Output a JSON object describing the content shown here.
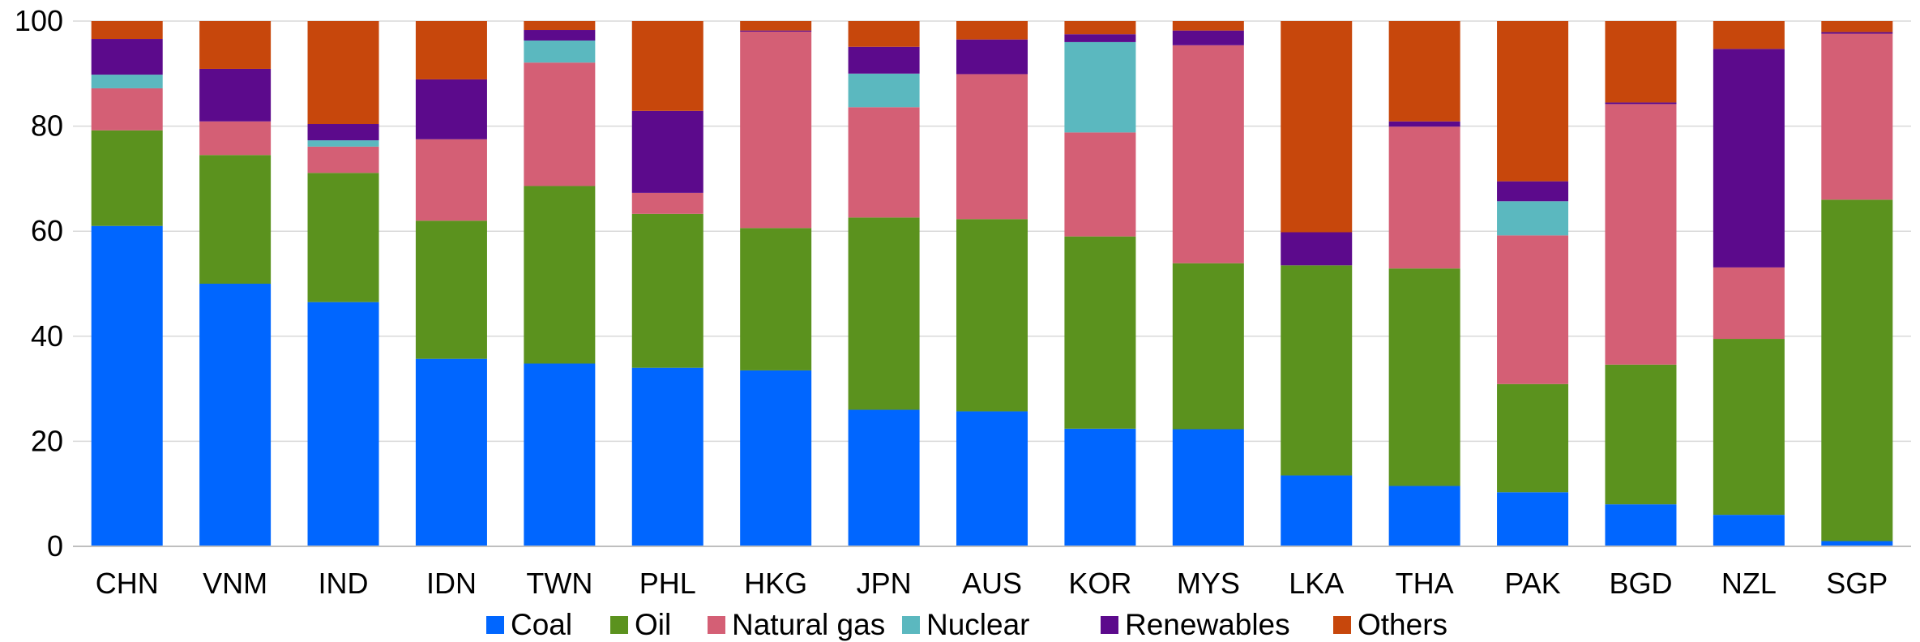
{
  "chart_data": {
    "type": "bar",
    "stacked": true,
    "categories": [
      "CHN",
      "VNM",
      "IND",
      "IDN",
      "TWN",
      "PHL",
      "HKG",
      "JPN",
      "AUS",
      "KOR",
      "MYS",
      "LKA",
      "THA",
      "PAK",
      "BGD",
      "NZL",
      "SGP"
    ],
    "series": [
      {
        "name": "Coal",
        "color": "#0066FF",
        "values": [
          61.0,
          50.0,
          46.5,
          35.7,
          34.8,
          34.0,
          33.5,
          26.0,
          25.7,
          22.4,
          22.3,
          13.5,
          11.5,
          10.3,
          8.0,
          6.0,
          1.0
        ]
      },
      {
        "name": "Oil",
        "color": "#5B921E",
        "values": [
          18.2,
          24.5,
          24.6,
          26.3,
          33.8,
          29.3,
          27.1,
          36.6,
          36.6,
          36.6,
          31.6,
          40.0,
          41.4,
          20.6,
          26.6,
          33.5,
          65.0
        ]
      },
      {
        "name": "Natural gas",
        "color": "#D45F75",
        "values": [
          8.0,
          6.4,
          5.0,
          15.5,
          23.5,
          4.0,
          37.4,
          21.0,
          27.6,
          19.8,
          41.5,
          0.0,
          27.0,
          28.3,
          49.6,
          13.6,
          31.6
        ]
      },
      {
        "name": "Nuclear",
        "color": "#5BB8BF",
        "values": [
          2.6,
          0.0,
          1.2,
          0.0,
          4.2,
          0.0,
          0.0,
          6.4,
          0.0,
          17.2,
          0.0,
          0.0,
          0.0,
          6.5,
          0.0,
          0.0,
          0.0
        ]
      },
      {
        "name": "Renewables",
        "color": "#5C0A8C",
        "values": [
          6.8,
          10.0,
          3.1,
          11.4,
          2.0,
          15.6,
          0.2,
          5.1,
          6.6,
          1.5,
          2.8,
          6.3,
          1.0,
          3.8,
          0.3,
          41.6,
          0.3
        ]
      },
      {
        "name": "Others",
        "color": "#C7470C",
        "values": [
          3.4,
          9.1,
          19.6,
          11.1,
          1.7,
          17.1,
          1.8,
          4.9,
          3.5,
          2.5,
          1.8,
          40.2,
          19.1,
          30.5,
          15.5,
          5.3,
          2.1
        ]
      }
    ],
    "ylim": [
      0,
      100
    ],
    "yticks": [
      "0",
      "20",
      "40",
      "60",
      "80",
      "100"
    ],
    "grid": true,
    "legend_position": "bottom"
  }
}
